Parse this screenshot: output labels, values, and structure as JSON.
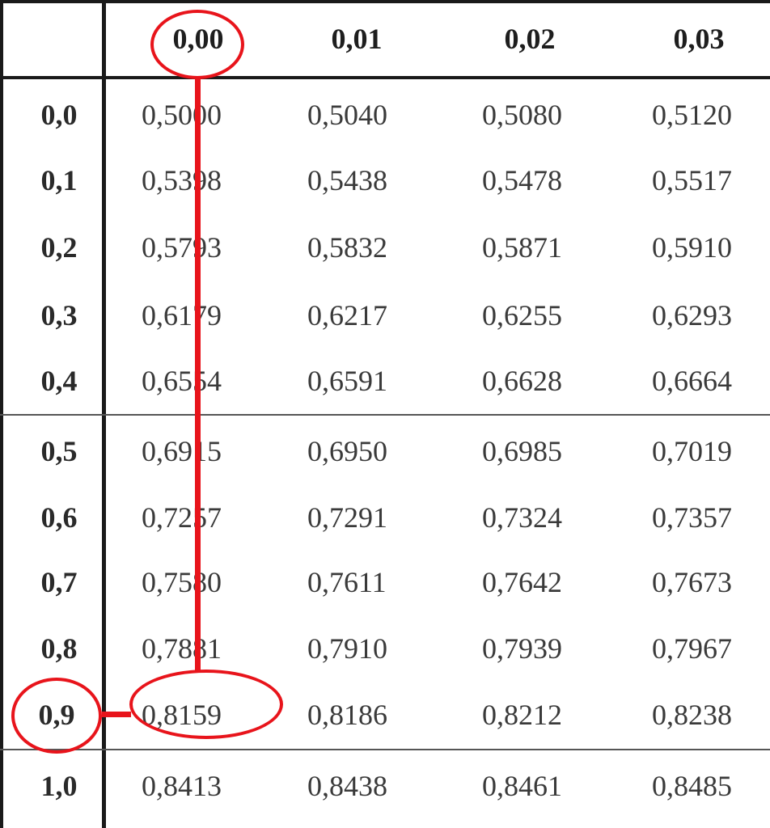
{
  "table": {
    "column_headers": [
      "0,00",
      "0,01",
      "0,02",
      "0,03"
    ],
    "rows": [
      {
        "label": "0,0",
        "values": [
          "0,5000",
          "0,5040",
          "0,5080",
          "0,5120"
        ]
      },
      {
        "label": "0,1",
        "values": [
          "0,5398",
          "0,5438",
          "0,5478",
          "0,5517"
        ]
      },
      {
        "label": "0,2",
        "values": [
          "0,5793",
          "0,5832",
          "0,5871",
          "0,5910"
        ]
      },
      {
        "label": "0,3",
        "values": [
          "0,6179",
          "0,6217",
          "0,6255",
          "0,6293"
        ]
      },
      {
        "label": "0,4",
        "values": [
          "0,6554",
          "0,6591",
          "0,6628",
          "0,6664"
        ]
      },
      {
        "label": "0,5",
        "values": [
          "0,6915",
          "0,6950",
          "0,6985",
          "0,7019"
        ]
      },
      {
        "label": "0,6",
        "values": [
          "0,7257",
          "0,7291",
          "0,7324",
          "0,7357"
        ]
      },
      {
        "label": "0,7",
        "values": [
          "0,7580",
          "0,7611",
          "0,7642",
          "0,7673"
        ]
      },
      {
        "label": "0,8",
        "values": [
          "0,7881",
          "0,7910",
          "0,7939",
          "0,7967"
        ]
      },
      {
        "label": "0,9",
        "values": [
          "0,8159",
          "0,8186",
          "0,8212",
          "0,8238"
        ]
      },
      {
        "label": "1,0",
        "values": [
          "0,8413",
          "0,8438",
          "0,8461",
          "0,8485"
        ]
      }
    ]
  },
  "highlight": {
    "column": "0,00",
    "row": "0,9",
    "value": "0,8159",
    "color": "#e8141b"
  }
}
